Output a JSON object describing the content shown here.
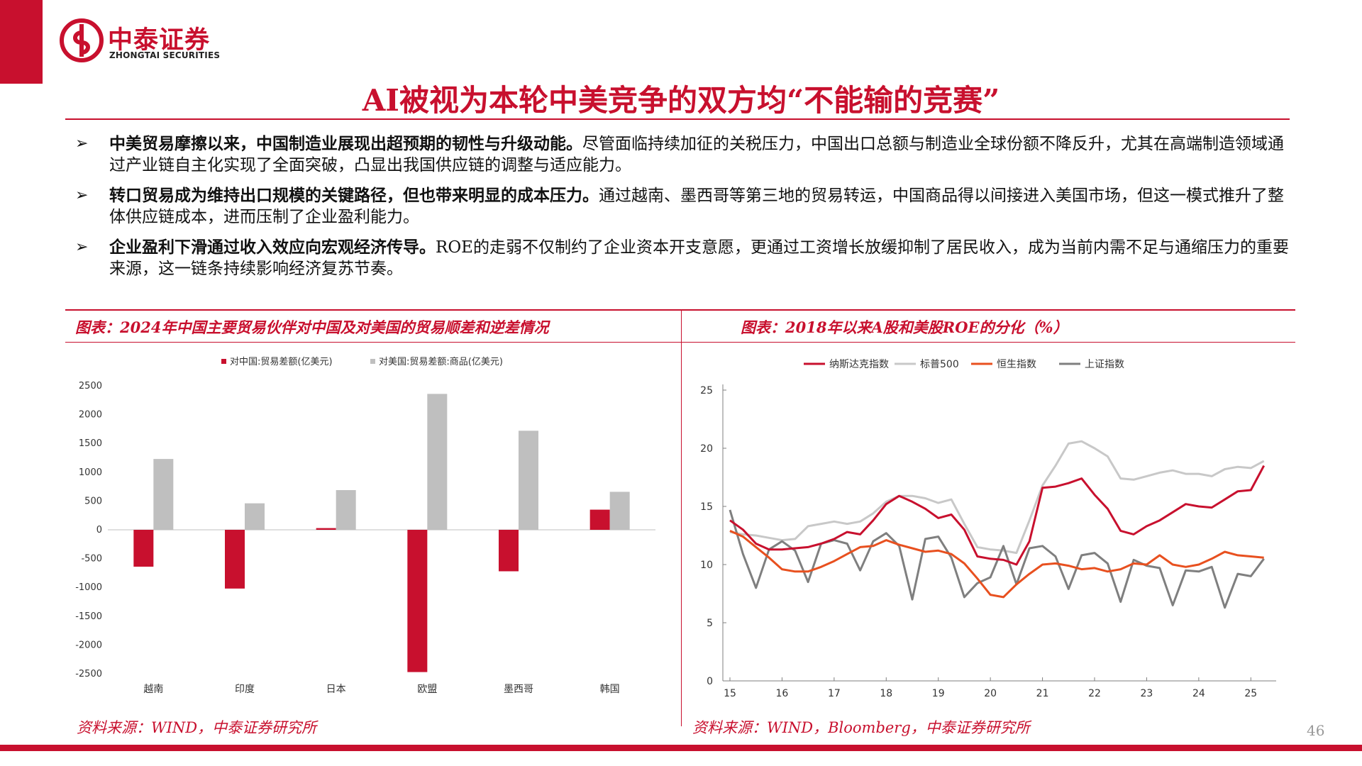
{
  "header": {
    "logo_cn": "中泰证券",
    "logo_en": "ZHONGTAI SECURITIES",
    "title": "AI被视为本轮中美竞争的双方均“不能输的竞赛”"
  },
  "bullets": [
    {
      "mark": "➢",
      "bold": "中美贸易摩擦以来，中国制造业展现出超预期的韧性与升级动能。",
      "text": "尽管面临持续加征的关税压力，中国出口总额与制造业全球份额不降反升，尤其在高端制造领域通过产业链自主化实现了全面突破，凸显出我国供应链的调整与适应能力。"
    },
    {
      "mark": "➢",
      "bold": "转口贸易成为维持出口规模的关键路径，但也带来明显的成本压力。",
      "text": "通过越南、墨西哥等第三地的贸易转运，中国商品得以间接进入美国市场，但这一模式推升了整体供应链成本，进而压制了企业盈利能力。"
    },
    {
      "mark": "➢",
      "bold": "企业盈利下滑通过收入效应向宏观经济传导。",
      "text": "ROE的走弱不仅制约了企业资本开支意愿，更通过工资增长放缓抑制了居民收入，成为当前内需不足与通缩压力的重要来源，这一链条持续影响经济复苏节奏。"
    }
  ],
  "left_panel": {
    "title": "图表：2024年中国主要贸易伙伴对中国及对美国的贸易顺差和逆差情况",
    "source": "资料来源：WIND，中泰证券研究所"
  },
  "right_panel": {
    "title": "图表：2018年以来A股和美股ROE的分化（%）",
    "source": "资料来源：WIND，Bloomberg，中泰证券研究所"
  },
  "page_number": "46",
  "colors": {
    "brand": "#c8102e",
    "gray_bar": "#bfbfbf",
    "sp500": "#c8c8c8",
    "hsi": "#e8501f",
    "sse": "#7f7f7f"
  },
  "chart_data": [
    {
      "type": "bar",
      "categories": [
        "越南",
        "印度",
        "日本",
        "欧盟",
        "墨西哥",
        "韩国"
      ],
      "series": [
        {
          "name": "对中国:贸易差额(亿美元)",
          "values": [
            -640,
            -1020,
            30,
            -2470,
            -720,
            350
          ]
        },
        {
          "name": "对美国:贸易差额:商品(亿美元)",
          "values": [
            1230,
            460,
            690,
            2360,
            1720,
            660
          ]
        }
      ],
      "yticks": [
        "2500",
        "2000",
        "1500",
        "1000",
        "500",
        "0",
        "-500",
        "-1000",
        "-1500",
        "-2000",
        "-2500"
      ],
      "ylim": [
        -2500,
        2500
      ],
      "legend": "top",
      "grid": false
    },
    {
      "type": "line",
      "x": [
        15.0,
        15.25,
        15.5,
        15.75,
        16.0,
        16.25,
        16.5,
        16.75,
        17.0,
        17.25,
        17.5,
        17.75,
        18.0,
        18.25,
        18.5,
        18.75,
        19.0,
        19.25,
        19.5,
        19.75,
        20.0,
        20.25,
        20.5,
        20.75,
        21.0,
        21.25,
        21.5,
        21.75,
        22.0,
        22.25,
        22.5,
        22.75,
        23.0,
        23.25,
        23.5,
        23.75,
        24.0,
        24.25,
        24.5,
        24.75,
        25.0,
        25.25
      ],
      "series": [
        {
          "name": "纳斯达克指数",
          "values": [
            13.8,
            13.0,
            11.8,
            11.3,
            11.3,
            11.4,
            11.5,
            11.8,
            12.2,
            12.8,
            12.6,
            13.8,
            15.2,
            15.9,
            15.4,
            14.8,
            14.0,
            14.3,
            13.0,
            10.7,
            10.5,
            10.4,
            10.0,
            12.0,
            16.6,
            16.7,
            17.0,
            17.4,
            16.0,
            14.8,
            12.9,
            12.6,
            13.3,
            13.8,
            14.5,
            15.2,
            15.0,
            14.9,
            15.6,
            16.3,
            16.4,
            18.5
          ]
        },
        {
          "name": "标普500",
          "values": [
            12.8,
            12.6,
            12.5,
            12.3,
            12.1,
            12.2,
            13.3,
            13.5,
            13.7,
            13.5,
            13.7,
            14.4,
            15.4,
            15.9,
            15.9,
            15.7,
            15.3,
            15.6,
            13.5,
            11.5,
            11.3,
            11.2,
            11.0,
            13.8,
            16.8,
            18.5,
            20.4,
            20.6,
            20.0,
            19.3,
            17.4,
            17.3,
            17.6,
            17.9,
            18.1,
            17.8,
            17.8,
            17.6,
            18.2,
            18.4,
            18.3,
            18.9
          ]
        },
        {
          "name": "恒生指数",
          "values": [
            12.9,
            12.4,
            11.5,
            10.6,
            9.6,
            9.4,
            9.4,
            9.8,
            10.3,
            10.9,
            11.5,
            11.6,
            12.1,
            11.7,
            11.4,
            11.1,
            11.2,
            10.9,
            10.1,
            8.8,
            7.4,
            7.2,
            8.3,
            9.2,
            10.0,
            10.1,
            9.9,
            9.6,
            9.7,
            9.4,
            9.6,
            10.1,
            10.0,
            10.8,
            10.0,
            9.8,
            10.0,
            10.5,
            11.1,
            10.8,
            10.7,
            10.6
          ]
        },
        {
          "name": "上证指数",
          "values": [
            14.7,
            10.9,
            8.0,
            11.3,
            12.0,
            11.2,
            8.5,
            11.8,
            12.1,
            11.8,
            9.5,
            12.0,
            12.7,
            11.6,
            7.0,
            12.2,
            12.4,
            10.6,
            7.2,
            8.4,
            8.9,
            11.6,
            8.3,
            11.4,
            11.6,
            10.7,
            7.9,
            10.8,
            11.0,
            10.1,
            6.8,
            10.4,
            9.9,
            9.7,
            6.5,
            9.5,
            9.4,
            9.8,
            6.3,
            9.2,
            9.0,
            10.5
          ]
        }
      ],
      "xticks": [
        "15",
        "16",
        "17",
        "18",
        "19",
        "20",
        "21",
        "22",
        "23",
        "24",
        "25"
      ],
      "yticks": [
        "25",
        "20",
        "15",
        "10",
        "5",
        "0"
      ],
      "ylim": [
        0,
        25
      ],
      "legend": "top",
      "grid": false
    }
  ]
}
